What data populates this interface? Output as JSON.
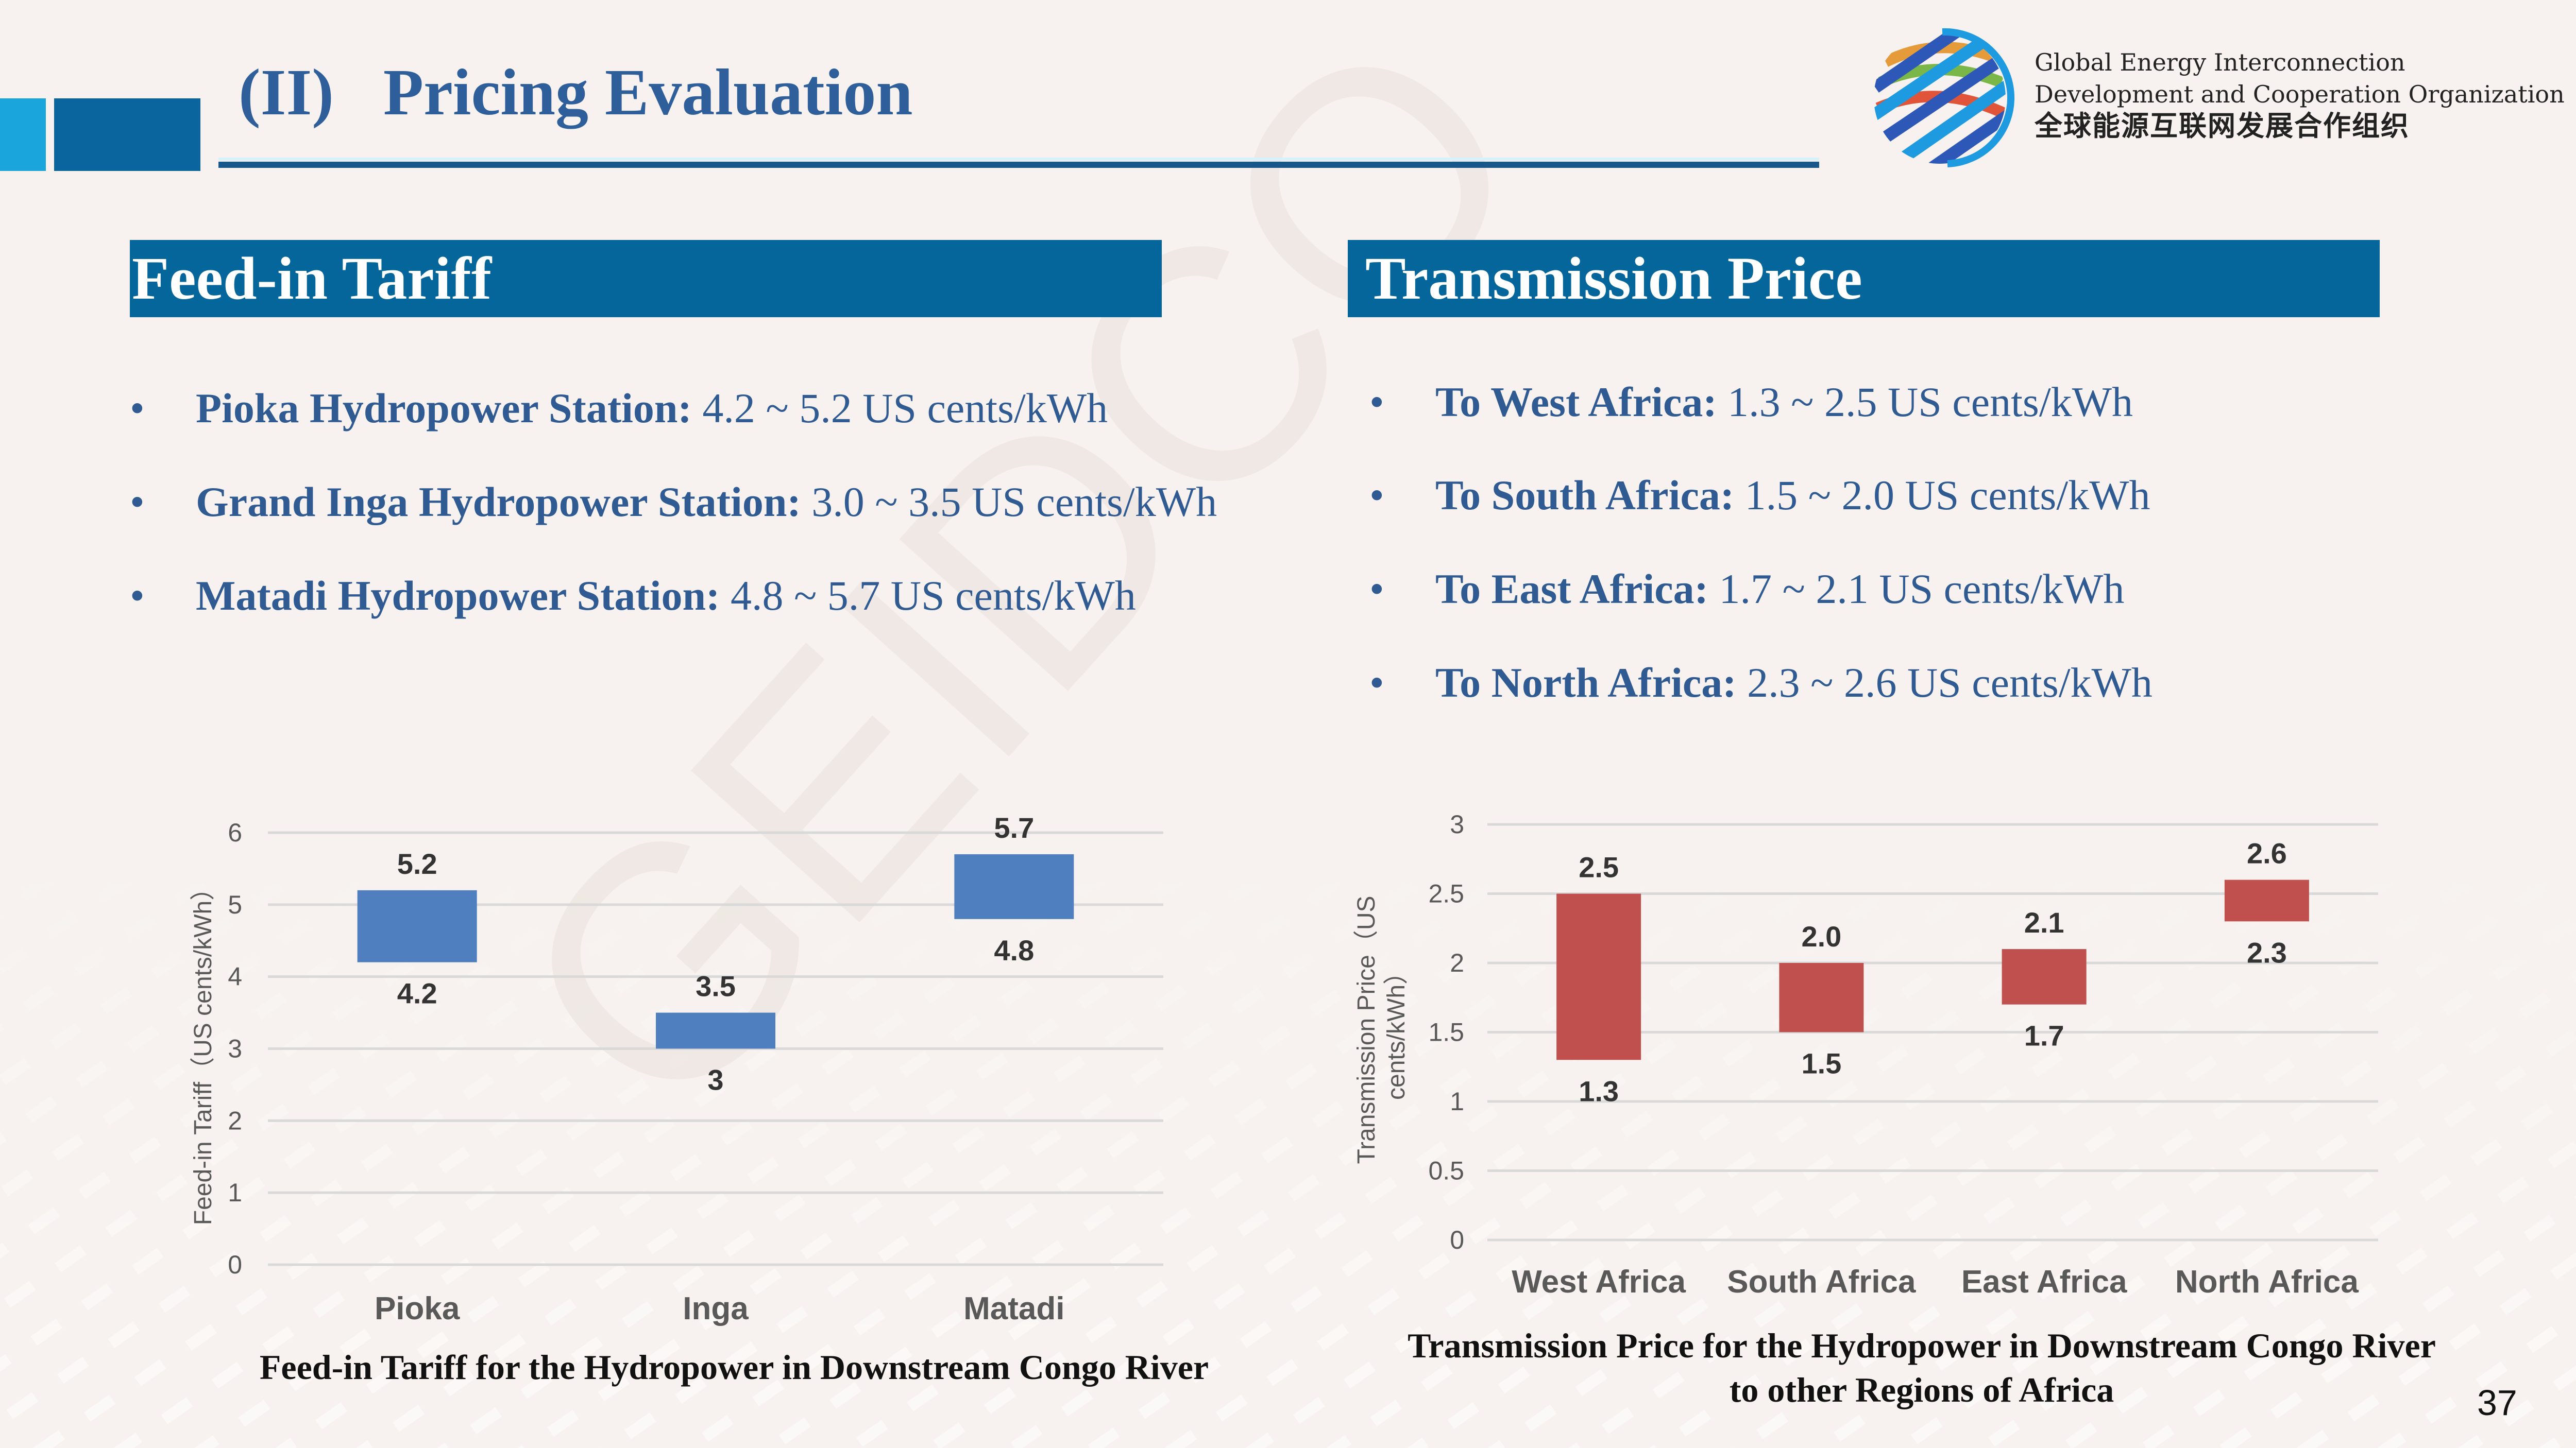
{
  "header": {
    "title": "(II)   Pricing Evaluation",
    "org_name_line1": "Global Energy Interconnection",
    "org_name_line2": "Development and Cooperation Organization",
    "org_name_cn": "全球能源互联网发展合作组织",
    "logo_icon": "striped-globe-icon"
  },
  "watermark": "GEIDCO",
  "colors": {
    "accent_dark": "#05669c",
    "accent_light": "#1aa6dd",
    "text_blue": "#2f5a92",
    "bar_blue": "#4f7fbf",
    "bar_red": "#c0504d",
    "background": "#f7f2ef"
  },
  "feed_in": {
    "heading": "Feed-in Tariff",
    "bullets": [
      {
        "label": "Pioka Hydropower Station:",
        "value": " 4.2 ~ 5.2 US cents/kWh"
      },
      {
        "label": "Grand Inga Hydropower Station:",
        "value": " 3.0 ~ 3.5 US cents/kWh"
      },
      {
        "label": "Matadi Hydropower Station:",
        "value": " 4.8 ~ 5.7 US cents/kWh"
      }
    ],
    "caption": "Feed-in Tariff for the Hydropower in Downstream Congo River"
  },
  "transmission": {
    "heading": "Transmission Price",
    "bullets": [
      {
        "label": "To West Africa:",
        "value": " 1.3 ~ 2.5 US cents/kWh"
      },
      {
        "label": "To South Africa:",
        "value": " 1.5 ~ 2.0 US cents/kWh"
      },
      {
        "label": "To East Africa:",
        "value": " 1.7 ~ 2.1 US cents/kWh"
      },
      {
        "label": "To North Africa:",
        "value": " 2.3 ~ 2.6 US cents/kWh"
      }
    ],
    "caption_line1": "Transmission Price for the Hydropower in Downstream Congo River",
    "caption_line2": "to other Regions of Africa"
  },
  "page_number": "37",
  "chart_data": [
    {
      "type": "bar",
      "subtype": "floating-range",
      "title": "Feed-in Tariff for the Hydropower in Downstream Congo River",
      "xlabel": "",
      "ylabel": "Feed-in Tariff（US cents/kWh）",
      "categories": [
        "Pioka",
        "Inga",
        "Matadi"
      ],
      "series": [
        {
          "name": "low",
          "values": [
            4.2,
            3,
            4.8
          ],
          "labels": [
            "4.2",
            "3",
            "4.8"
          ]
        },
        {
          "name": "high",
          "values": [
            5.2,
            3.5,
            5.7
          ],
          "labels": [
            "5.2",
            "3.5",
            "5.7"
          ]
        }
      ],
      "ylim": [
        0,
        6
      ],
      "yticks": [
        "0",
        "1",
        "2",
        "3",
        "4",
        "5",
        "6"
      ],
      "grid": true,
      "legend": "none",
      "color": "#4f7fbf"
    },
    {
      "type": "bar",
      "subtype": "floating-range",
      "title": "Transmission Price for the Hydropower in Downstream Congo River to other Regions of Africa",
      "xlabel": "",
      "ylabel": "Transmission Price（US cents/kWh）",
      "ylabel_lines": [
        "Transmission Price（US",
        "cents/kWh）"
      ],
      "categories": [
        "West Africa",
        "South Africa",
        "East Africa",
        "North Africa"
      ],
      "series": [
        {
          "name": "low",
          "values": [
            1.3,
            1.5,
            1.7,
            2.3
          ],
          "labels": [
            "1.3",
            "1.5",
            "1.7",
            "2.3"
          ]
        },
        {
          "name": "high",
          "values": [
            2.5,
            2.0,
            2.1,
            2.6
          ],
          "labels": [
            "2.5",
            "2.0",
            "2.1",
            "2.6"
          ]
        }
      ],
      "ylim": [
        0,
        3
      ],
      "yticks": [
        "0",
        "0.5",
        "1",
        "1.5",
        "2",
        "2.5",
        "3"
      ],
      "grid": true,
      "legend": "none",
      "color": "#c0504d"
    }
  ]
}
